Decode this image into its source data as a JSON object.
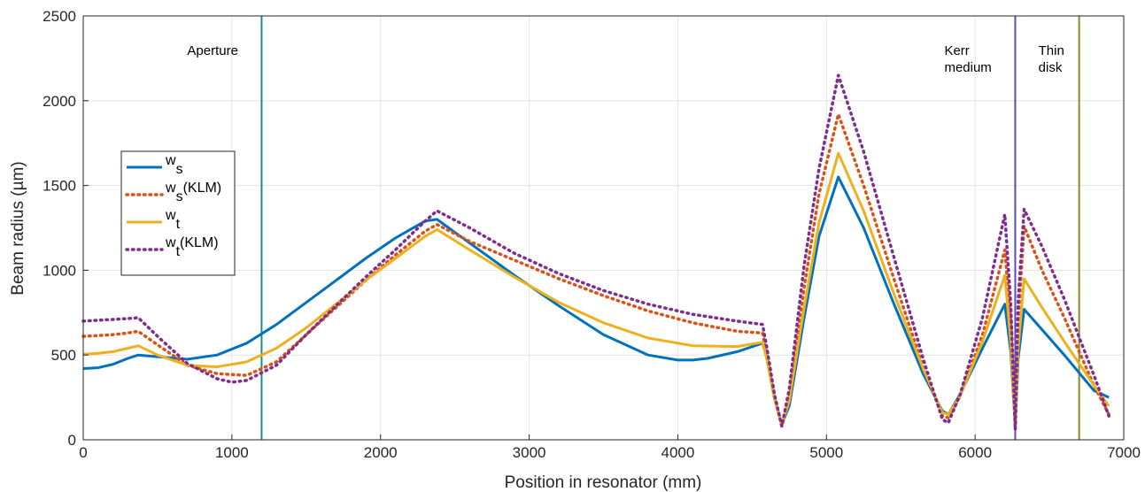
{
  "chart_data": {
    "type": "line",
    "xlabel": "Position in resonator (mm)",
    "ylabel": "Beam radius (µm)",
    "xlim": [
      0,
      7000
    ],
    "ylim": [
      0,
      2500
    ],
    "xticks": [
      0,
      1000,
      2000,
      3000,
      4000,
      5000,
      6000,
      7000
    ],
    "yticks": [
      0,
      500,
      1000,
      1500,
      2000,
      2500
    ],
    "grid": true,
    "legend_position": "left",
    "series": [
      {
        "name": "w_s",
        "base": "w",
        "sub": "s",
        "suffix": "",
        "color": "#0072BD",
        "style": "solid",
        "x": [
          0,
          100,
          200,
          300,
          370,
          500,
          700,
          900,
          1100,
          1300,
          1500,
          1700,
          1900,
          2100,
          2300,
          2380,
          2600,
          2900,
          3200,
          3500,
          3800,
          4000,
          4100,
          4200,
          4400,
          4570,
          4600,
          4650,
          4700,
          4750,
          4850,
          4950,
          5080,
          5250,
          5450,
          5650,
          5780,
          5820,
          5900,
          6050,
          6200,
          6240,
          6270,
          6290,
          6330,
          6450,
          6600,
          6800,
          6900
        ],
        "y": [
          420,
          425,
          445,
          480,
          500,
          490,
          475,
          500,
          570,
          680,
          810,
          940,
          1070,
          1190,
          1290,
          1300,
          1160,
          970,
          790,
          620,
          500,
          470,
          470,
          480,
          520,
          570,
          480,
          250,
          90,
          200,
          720,
          1200,
          1550,
          1250,
          810,
          390,
          170,
          150,
          270,
          540,
          800,
          520,
          80,
          480,
          770,
          650,
          500,
          290,
          250
        ]
      },
      {
        "name": "w_s(KLM)",
        "base": "w",
        "sub": "s",
        "suffix": "(KLM)",
        "color": "#D95319",
        "style": "dotted",
        "x": [
          0,
          100,
          200,
          300,
          370,
          500,
          700,
          900,
          1100,
          1300,
          1500,
          1700,
          1900,
          2100,
          2300,
          2380,
          2600,
          2900,
          3200,
          3500,
          3800,
          4100,
          4400,
          4570,
          4600,
          4650,
          4700,
          4750,
          4850,
          4950,
          5080,
          5250,
          5450,
          5650,
          5780,
          5820,
          5900,
          6050,
          6200,
          6240,
          6270,
          6290,
          6330,
          6450,
          6600,
          6800,
          6900
        ],
        "y": [
          610,
          615,
          620,
          630,
          640,
          560,
          440,
          390,
          380,
          460,
          620,
          780,
          940,
          1090,
          1230,
          1270,
          1170,
          1060,
          950,
          850,
          760,
          690,
          640,
          630,
          500,
          250,
          80,
          250,
          900,
          1450,
          1920,
          1500,
          960,
          430,
          140,
          130,
          260,
          620,
          1120,
          700,
          70,
          700,
          1260,
          1000,
          720,
          320,
          150
        ]
      },
      {
        "name": "w_t",
        "base": "w",
        "sub": "t",
        "suffix": "",
        "color": "#EDB120",
        "style": "solid",
        "x": [
          0,
          100,
          200,
          300,
          370,
          500,
          700,
          900,
          1100,
          1300,
          1500,
          1700,
          1900,
          2100,
          2300,
          2380,
          2600,
          2900,
          3200,
          3500,
          3800,
          4100,
          4400,
          4570,
          4600,
          4650,
          4700,
          4750,
          4850,
          4950,
          5080,
          5250,
          5450,
          5650,
          5780,
          5820,
          5900,
          6050,
          6200,
          6240,
          6270,
          6290,
          6330,
          6450,
          6600,
          6800,
          6900
        ],
        "y": [
          505,
          510,
          520,
          540,
          555,
          500,
          440,
          430,
          460,
          540,
          660,
          800,
          940,
          1070,
          1200,
          1240,
          1120,
          960,
          810,
          690,
          600,
          555,
          550,
          575,
          470,
          240,
          85,
          230,
          780,
          1280,
          1690,
          1350,
          870,
          420,
          160,
          150,
          260,
          580,
          970,
          580,
          75,
          540,
          950,
          780,
          580,
          320,
          200
        ]
      },
      {
        "name": "w_t(KLM)",
        "base": "w",
        "sub": "t",
        "suffix": "(KLM)",
        "color": "#7E2F8E",
        "style": "dotted",
        "x": [
          0,
          100,
          200,
          300,
          370,
          500,
          700,
          900,
          1000,
          1100,
          1300,
          1500,
          1700,
          1900,
          2100,
          2300,
          2380,
          2600,
          2900,
          3200,
          3500,
          3800,
          4100,
          4400,
          4570,
          4600,
          4650,
          4700,
          4750,
          4850,
          4950,
          5080,
          5250,
          5450,
          5650,
          5780,
          5820,
          5900,
          6050,
          6200,
          6240,
          6270,
          6290,
          6330,
          6450,
          6600,
          6800,
          6900
        ],
        "y": [
          700,
          705,
          710,
          715,
          720,
          610,
          450,
          360,
          340,
          350,
          440,
          620,
          790,
          960,
          1120,
          1290,
          1350,
          1250,
          1100,
          980,
          880,
          800,
          740,
          700,
          680,
          540,
          270,
          80,
          300,
          1030,
          1600,
          2150,
          1700,
          1090,
          480,
          120,
          100,
          270,
          720,
          1330,
          800,
          60,
          820,
          1360,
          1140,
          830,
          380,
          140
        ]
      }
    ],
    "vlines": [
      {
        "x": 1200,
        "color": "#1F8C8C",
        "label": [
          "Aperture"
        ]
      },
      {
        "x": 6270,
        "color": "#5A48C4",
        "label": [
          "Kerr",
          "medium"
        ]
      },
      {
        "x": 6700,
        "color": "#8C8A1E",
        "label": [
          "Thin",
          "disk"
        ]
      }
    ]
  }
}
